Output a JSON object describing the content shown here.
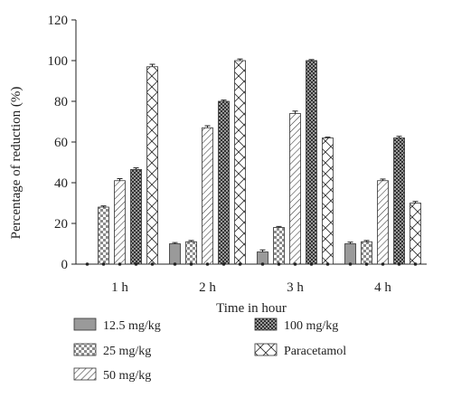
{
  "chart_data": {
    "type": "bar",
    "title": "",
    "xlabel": "Time in hour",
    "ylabel": "Percentage of reduction (%)",
    "ylim": [
      0,
      120
    ],
    "yticks": [
      0,
      20,
      40,
      60,
      80,
      100,
      120
    ],
    "categories": [
      "1 h",
      "2 h",
      "3 h",
      "4 h"
    ],
    "series": [
      {
        "name": "12.5 mg/kg",
        "values": [
          0,
          10,
          6,
          10
        ],
        "errors": [
          0,
          0.6,
          1.0,
          0.8
        ],
        "pattern": "solid-gray"
      },
      {
        "name": "25 mg/kg",
        "values": [
          28,
          11,
          18,
          11
        ],
        "errors": [
          0.6,
          0.6,
          0.5,
          0.6
        ],
        "pattern": "checker"
      },
      {
        "name": "50 mg/kg",
        "values": [
          41,
          67,
          74,
          41
        ],
        "errors": [
          1.0,
          1.0,
          1.2,
          0.8
        ],
        "pattern": "diagonal"
      },
      {
        "name": "100 mg/kg",
        "values": [
          46.5,
          80,
          100,
          62
        ],
        "errors": [
          0.8,
          0.6,
          0.5,
          0.8
        ],
        "pattern": "dense-dots"
      },
      {
        "name": "Paracetamol",
        "values": [
          97,
          100,
          62,
          30
        ],
        "errors": [
          1.2,
          0.8,
          0.4,
          0.8
        ],
        "pattern": "cross-hatch"
      }
    ],
    "legend_placement": "bottom",
    "grid": false
  }
}
